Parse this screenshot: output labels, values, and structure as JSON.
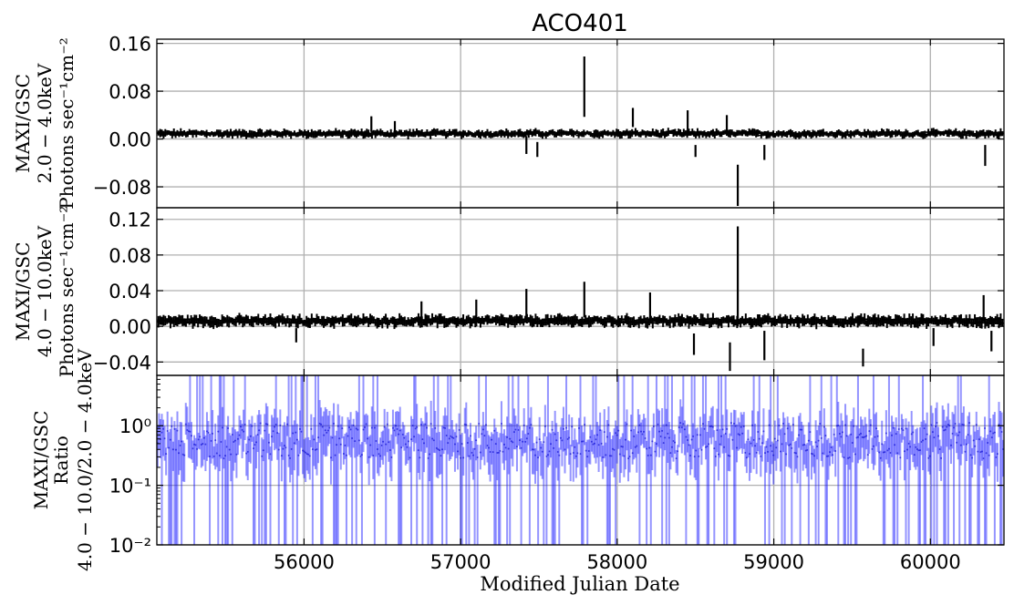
{
  "chart_data": [
    {
      "type": "scatter",
      "panel": "top",
      "title": "ACO401",
      "ylabel_lines": [
        "MAXI/GSC",
        "2.0 − 4.0keV",
        "Photons sec⁻¹cm⁻²"
      ],
      "xlim": [
        55060,
        60470
      ],
      "ylim": [
        -0.115,
        0.167
      ],
      "yticks": [
        -0.08,
        0.0,
        0.08,
        0.16
      ],
      "ytick_labels": [
        "−0.08",
        "0.00",
        "0.08",
        "0.16"
      ],
      "grid": true,
      "spikes": [
        {
          "x": 57790,
          "low": 0.037,
          "high": 0.138
        },
        {
          "x": 58770,
          "low": -0.112,
          "high": -0.043
        },
        {
          "x": 58100,
          "low": 0.02,
          "high": 0.052
        },
        {
          "x": 56430,
          "low": 0.012,
          "high": 0.038
        },
        {
          "x": 58450,
          "low": 0.015,
          "high": 0.048
        },
        {
          "x": 58700,
          "low": 0.01,
          "high": 0.04
        },
        {
          "x": 58500,
          "low": -0.03,
          "high": -0.01
        },
        {
          "x": 58940,
          "low": -0.035,
          "high": -0.01
        },
        {
          "x": 60350,
          "low": -0.045,
          "high": -0.01
        },
        {
          "x": 56580,
          "low": 0.01,
          "high": 0.03
        },
        {
          "x": 57420,
          "low": -0.025,
          "high": 0.005
        },
        {
          "x": 57490,
          "low": -0.03,
          "high": -0.005
        }
      ],
      "color": "#000000"
    },
    {
      "type": "scatter",
      "panel": "middle",
      "ylabel_lines": [
        "MAXI/GSC",
        "4.0 − 10.0keV",
        "Photons sec⁻¹cm⁻²"
      ],
      "xlim": [
        55060,
        60470
      ],
      "ylim": [
        -0.055,
        0.133
      ],
      "yticks": [
        -0.04,
        0.0,
        0.04,
        0.08,
        0.12
      ],
      "ytick_labels": [
        "−0.04",
        "0.00",
        "0.04",
        "0.08",
        "0.12"
      ],
      "grid": true,
      "spikes": [
        {
          "x": 58770,
          "low": 0.0,
          "high": 0.112
        },
        {
          "x": 58720,
          "low": -0.05,
          "high": -0.018
        },
        {
          "x": 57790,
          "low": 0.01,
          "high": 0.05
        },
        {
          "x": 57420,
          "low": 0.005,
          "high": 0.042
        },
        {
          "x": 57100,
          "low": 0.0,
          "high": 0.03
        },
        {
          "x": 58210,
          "low": 0.005,
          "high": 0.038
        },
        {
          "x": 59570,
          "low": -0.045,
          "high": -0.025
        },
        {
          "x": 58940,
          "low": -0.038,
          "high": -0.005
        },
        {
          "x": 58490,
          "low": -0.032,
          "high": -0.008
        },
        {
          "x": 60340,
          "low": 0.005,
          "high": 0.035
        },
        {
          "x": 60390,
          "low": -0.028,
          "high": -0.005
        },
        {
          "x": 60020,
          "low": -0.022,
          "high": -0.002
        },
        {
          "x": 55950,
          "low": -0.018,
          "high": -0.002
        },
        {
          "x": 56750,
          "low": 0.005,
          "high": 0.028
        }
      ],
      "color": "#000000"
    },
    {
      "type": "scatter",
      "panel": "bottom",
      "ylabel_lines": [
        "MAXI/GSC",
        "Ratio",
        "4.0 − 10.0/2.0 − 4.0keV"
      ],
      "xlabel": "Modified Julian Date",
      "xlim": [
        55060,
        60470
      ],
      "ylim": [
        0.01,
        7.0
      ],
      "yscale": "log",
      "yticks": [
        0.01,
        0.1,
        1.0
      ],
      "ytick_labels": [
        "10⁻²",
        "10⁻¹",
        "10⁰"
      ],
      "xticks": [
        56000,
        57000,
        58000,
        59000,
        60000
      ],
      "xtick_labels": [
        "56000",
        "57000",
        "58000",
        "59000",
        "60000"
      ],
      "grid": true,
      "color": "#0000ff"
    }
  ]
}
